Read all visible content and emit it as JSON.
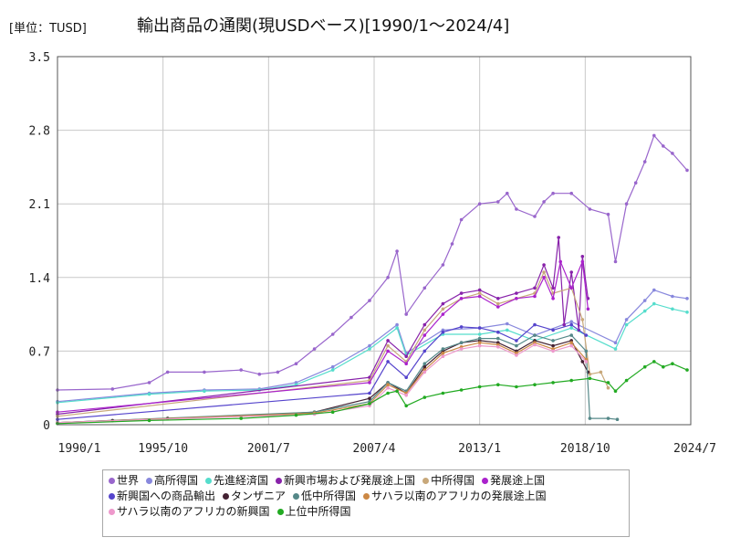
{
  "chart_data": {
    "type": "line",
    "title": "輸出商品の通関(現USDベース)[1990/1～2024/4]",
    "unit_label": "[単位：TUSD]",
    "xlabel": "",
    "ylabel": "",
    "ylim": [
      0,
      3.5
    ],
    "y_ticks": [
      "0",
      "0.7",
      "1.4",
      "2.1",
      "2.8",
      "3.5"
    ],
    "y_tick_values": [
      0,
      0.7,
      1.4,
      2.1,
      2.8,
      3.5
    ],
    "x_ticks": [
      "1990/1",
      "1995/10",
      "2001/7",
      "2007/4",
      "2013/1",
      "2018/10",
      "2024/7"
    ],
    "x_tick_values": [
      1990.0,
      1995.75,
      2001.5,
      2007.25,
      2013.0,
      2018.75,
      2024.5
    ],
    "xlim": [
      1990.0,
      2024.5
    ],
    "grid": true,
    "legend_position": "bottom",
    "series": [
      {
        "name": "世界",
        "color": "#9966cc",
        "points": [
          [
            1990.0,
            0.33
          ],
          [
            1993.0,
            0.34
          ],
          [
            1995.0,
            0.4
          ],
          [
            1996.0,
            0.5
          ],
          [
            1998.0,
            0.5
          ],
          [
            2000.0,
            0.52
          ],
          [
            2001.0,
            0.48
          ],
          [
            2002.0,
            0.5
          ],
          [
            2003.0,
            0.58
          ],
          [
            2004.0,
            0.72
          ],
          [
            2005.0,
            0.86
          ],
          [
            2006.0,
            1.02
          ],
          [
            2007.0,
            1.18
          ],
          [
            2008.0,
            1.4
          ],
          [
            2008.5,
            1.65
          ],
          [
            2009.0,
            1.05
          ],
          [
            2010.0,
            1.3
          ],
          [
            2011.0,
            1.52
          ],
          [
            2011.5,
            1.72
          ],
          [
            2012.0,
            1.95
          ],
          [
            2013.0,
            2.1
          ],
          [
            2014.0,
            2.12
          ],
          [
            2014.5,
            2.2
          ],
          [
            2015.0,
            2.05
          ],
          [
            2016.0,
            1.98
          ],
          [
            2016.5,
            2.12
          ],
          [
            2017.0,
            2.2
          ],
          [
            2018.0,
            2.2
          ],
          [
            2019.0,
            2.05
          ],
          [
            2020.0,
            2.0
          ],
          [
            2020.4,
            1.55
          ],
          [
            2021.0,
            2.1
          ],
          [
            2021.5,
            2.3
          ],
          [
            2022.0,
            2.5
          ],
          [
            2022.5,
            2.75
          ],
          [
            2023.0,
            2.65
          ],
          [
            2023.5,
            2.58
          ],
          [
            2024.3,
            2.42
          ]
        ]
      },
      {
        "name": "高所得国",
        "color": "#8888dd",
        "points": [
          [
            1990.0,
            0.22
          ],
          [
            1995.0,
            0.3
          ],
          [
            1998.0,
            0.33
          ],
          [
            2001.0,
            0.34
          ],
          [
            2003.0,
            0.4
          ],
          [
            2005.0,
            0.55
          ],
          [
            2007.0,
            0.75
          ],
          [
            2008.5,
            0.95
          ],
          [
            2009.0,
            0.68
          ],
          [
            2011.0,
            0.9
          ],
          [
            2013.0,
            0.92
          ],
          [
            2014.5,
            0.96
          ],
          [
            2016.0,
            0.85
          ],
          [
            2018.0,
            0.98
          ],
          [
            2020.4,
            0.78
          ],
          [
            2021.0,
            1.0
          ],
          [
            2022.0,
            1.18
          ],
          [
            2022.5,
            1.28
          ],
          [
            2023.5,
            1.22
          ],
          [
            2024.3,
            1.2
          ]
        ]
      },
      {
        "name": "先進経済国",
        "color": "#55ddcc",
        "points": [
          [
            1990.0,
            0.21
          ],
          [
            1995.0,
            0.29
          ],
          [
            1998.0,
            0.32
          ],
          [
            2001.0,
            0.33
          ],
          [
            2003.0,
            0.38
          ],
          [
            2005.0,
            0.52
          ],
          [
            2007.0,
            0.72
          ],
          [
            2008.5,
            0.92
          ],
          [
            2009.0,
            0.66
          ],
          [
            2011.0,
            0.86
          ],
          [
            2013.0,
            0.86
          ],
          [
            2014.5,
            0.9
          ],
          [
            2016.0,
            0.8
          ],
          [
            2018.0,
            0.92
          ],
          [
            2020.4,
            0.72
          ],
          [
            2021.0,
            0.95
          ],
          [
            2022.0,
            1.08
          ],
          [
            2022.5,
            1.15
          ],
          [
            2023.5,
            1.1
          ],
          [
            2024.3,
            1.07
          ]
        ]
      },
      {
        "name": "新興市場および発展途上国",
        "color": "#8822aa",
        "points": [
          [
            1990.0,
            0.1
          ],
          [
            2007.0,
            0.45
          ],
          [
            2008.0,
            0.8
          ],
          [
            2009.0,
            0.65
          ],
          [
            2010.0,
            0.95
          ],
          [
            2011.0,
            1.15
          ],
          [
            2012.0,
            1.25
          ],
          [
            2013.0,
            1.28
          ],
          [
            2014.0,
            1.2
          ],
          [
            2015.0,
            1.25
          ],
          [
            2016.0,
            1.3
          ],
          [
            2016.5,
            1.52
          ],
          [
            2017.0,
            1.3
          ],
          [
            2017.3,
            1.78
          ],
          [
            2017.6,
            0.95
          ],
          [
            2018.0,
            1.45
          ],
          [
            2018.4,
            0.9
          ],
          [
            2018.6,
            1.6
          ],
          [
            2018.9,
            1.2
          ]
        ]
      },
      {
        "name": "中所得国",
        "color": "#c8a87a",
        "points": [
          [
            1990.0,
            0.08
          ],
          [
            2007.0,
            0.42
          ],
          [
            2008.0,
            0.75
          ],
          [
            2009.0,
            0.6
          ],
          [
            2010.0,
            0.9
          ],
          [
            2011.0,
            1.1
          ],
          [
            2012.0,
            1.2
          ],
          [
            2013.0,
            1.25
          ],
          [
            2014.0,
            1.15
          ],
          [
            2015.0,
            1.2
          ],
          [
            2016.0,
            1.25
          ],
          [
            2016.5,
            1.45
          ],
          [
            2017.0,
            1.25
          ],
          [
            2018.0,
            1.3
          ],
          [
            2018.6,
            1.0
          ],
          [
            2019.0,
            0.48
          ],
          [
            2019.6,
            0.5
          ],
          [
            2020.0,
            0.35
          ]
        ]
      },
      {
        "name": "発展途上国",
        "color": "#aa22cc",
        "points": [
          [
            1990.0,
            0.12
          ],
          [
            2007.0,
            0.4
          ],
          [
            2008.0,
            0.7
          ],
          [
            2009.0,
            0.58
          ],
          [
            2010.0,
            0.85
          ],
          [
            2011.0,
            1.05
          ],
          [
            2012.0,
            1.2
          ],
          [
            2013.0,
            1.22
          ],
          [
            2014.0,
            1.12
          ],
          [
            2015.0,
            1.2
          ],
          [
            2016.0,
            1.22
          ],
          [
            2016.5,
            1.4
          ],
          [
            2017.0,
            1.2
          ],
          [
            2017.4,
            1.55
          ],
          [
            2018.0,
            1.3
          ],
          [
            2018.6,
            1.55
          ],
          [
            2018.9,
            1.1
          ]
        ]
      },
      {
        "name": "新興国への商品輸出",
        "color": "#5544cc",
        "points": [
          [
            1990.0,
            0.05
          ],
          [
            2007.0,
            0.3
          ],
          [
            2008.0,
            0.6
          ],
          [
            2009.0,
            0.45
          ],
          [
            2010.0,
            0.7
          ],
          [
            2011.0,
            0.88
          ],
          [
            2012.0,
            0.93
          ],
          [
            2013.0,
            0.92
          ],
          [
            2014.0,
            0.88
          ],
          [
            2015.0,
            0.8
          ],
          [
            2016.0,
            0.95
          ],
          [
            2017.0,
            0.9
          ],
          [
            2018.0,
            0.95
          ],
          [
            2018.8,
            0.85
          ]
        ]
      },
      {
        "name": "タンザニア",
        "color": "#442233",
        "points": [
          [
            1990.0,
            0.02
          ],
          [
            1993.0,
            0.04
          ],
          [
            1996.0,
            0.06
          ],
          [
            2000.0,
            0.08
          ],
          [
            2004.0,
            0.12
          ],
          [
            2007.0,
            0.25
          ],
          [
            2008.0,
            0.4
          ],
          [
            2009.0,
            0.3
          ],
          [
            2010.0,
            0.55
          ],
          [
            2011.0,
            0.7
          ],
          [
            2012.0,
            0.78
          ],
          [
            2013.0,
            0.8
          ],
          [
            2014.0,
            0.78
          ],
          [
            2015.0,
            0.7
          ],
          [
            2016.0,
            0.8
          ],
          [
            2017.0,
            0.75
          ],
          [
            2018.0,
            0.8
          ],
          [
            2018.6,
            0.6
          ],
          [
            2018.9,
            0.5
          ]
        ]
      },
      {
        "name": "低中所得国",
        "color": "#558888",
        "points": [
          [
            1990.0,
            0.02
          ],
          [
            2004.0,
            0.12
          ],
          [
            2007.0,
            0.22
          ],
          [
            2008.0,
            0.4
          ],
          [
            2009.0,
            0.32
          ],
          [
            2010.0,
            0.58
          ],
          [
            2011.0,
            0.72
          ],
          [
            2012.0,
            0.78
          ],
          [
            2013.0,
            0.82
          ],
          [
            2014.0,
            0.82
          ],
          [
            2015.0,
            0.75
          ],
          [
            2016.0,
            0.85
          ],
          [
            2017.0,
            0.8
          ],
          [
            2018.0,
            0.85
          ],
          [
            2018.8,
            0.7
          ],
          [
            2019.0,
            0.06
          ],
          [
            2020.0,
            0.06
          ],
          [
            2020.5,
            0.05
          ]
        ]
      },
      {
        "name": "サハラ以南のアフリカの発展途上国",
        "color": "#cc8844",
        "points": [
          [
            1990.0,
            0.02
          ],
          [
            2004.0,
            0.11
          ],
          [
            2007.0,
            0.2
          ],
          [
            2008.0,
            0.38
          ],
          [
            2009.0,
            0.3
          ],
          [
            2010.0,
            0.52
          ],
          [
            2011.0,
            0.68
          ],
          [
            2012.0,
            0.74
          ],
          [
            2013.0,
            0.78
          ],
          [
            2014.0,
            0.76
          ],
          [
            2015.0,
            0.68
          ],
          [
            2016.0,
            0.78
          ],
          [
            2017.0,
            0.72
          ],
          [
            2018.0,
            0.78
          ],
          [
            2018.8,
            0.62
          ]
        ]
      },
      {
        "name": "サハラ以南のアフリカの新興国",
        "color": "#ee99cc",
        "points": [
          [
            1990.0,
            0.02
          ],
          [
            2004.0,
            0.1
          ],
          [
            2007.0,
            0.18
          ],
          [
            2008.0,
            0.35
          ],
          [
            2009.0,
            0.28
          ],
          [
            2010.0,
            0.5
          ],
          [
            2011.0,
            0.65
          ],
          [
            2012.0,
            0.72
          ],
          [
            2013.0,
            0.75
          ],
          [
            2014.0,
            0.74
          ],
          [
            2015.0,
            0.66
          ],
          [
            2016.0,
            0.76
          ],
          [
            2017.0,
            0.7
          ],
          [
            2018.0,
            0.75
          ],
          [
            2018.8,
            0.6
          ]
        ]
      },
      {
        "name": "上位中所得国",
        "color": "#22aa22",
        "points": [
          [
            1990.0,
            0.01
          ],
          [
            1995.0,
            0.04
          ],
          [
            2000.0,
            0.06
          ],
          [
            2003.0,
            0.09
          ],
          [
            2005.0,
            0.12
          ],
          [
            2007.0,
            0.2
          ],
          [
            2008.0,
            0.3
          ],
          [
            2008.5,
            0.32
          ],
          [
            2009.0,
            0.18
          ],
          [
            2010.0,
            0.26
          ],
          [
            2011.0,
            0.3
          ],
          [
            2012.0,
            0.33
          ],
          [
            2013.0,
            0.36
          ],
          [
            2014.0,
            0.38
          ],
          [
            2015.0,
            0.36
          ],
          [
            2016.0,
            0.38
          ],
          [
            2017.0,
            0.4
          ],
          [
            2018.0,
            0.42
          ],
          [
            2019.0,
            0.44
          ],
          [
            2020.0,
            0.4
          ],
          [
            2020.4,
            0.32
          ],
          [
            2021.0,
            0.42
          ],
          [
            2022.0,
            0.55
          ],
          [
            2022.5,
            0.6
          ],
          [
            2023.0,
            0.55
          ],
          [
            2023.5,
            0.58
          ],
          [
            2024.3,
            0.52
          ]
        ]
      }
    ]
  }
}
